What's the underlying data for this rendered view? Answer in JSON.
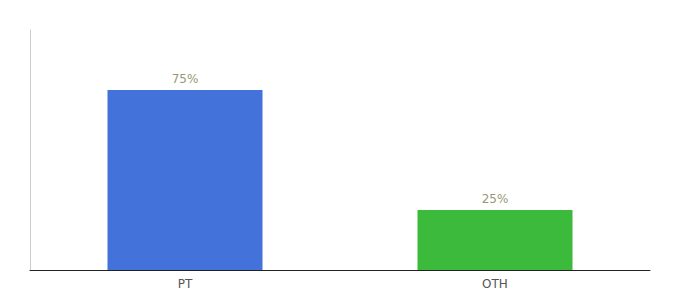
{
  "chart_data": {
    "type": "bar",
    "categories": [
      "PT",
      "OTH"
    ],
    "values": [
      75,
      25
    ],
    "value_labels": [
      "75%",
      "25%"
    ],
    "colors": [
      "#4472db",
      "#3cba3c"
    ],
    "data_labels": true,
    "ylim": [
      0,
      100
    ],
    "tick_labels": "x",
    "grid": false
  }
}
